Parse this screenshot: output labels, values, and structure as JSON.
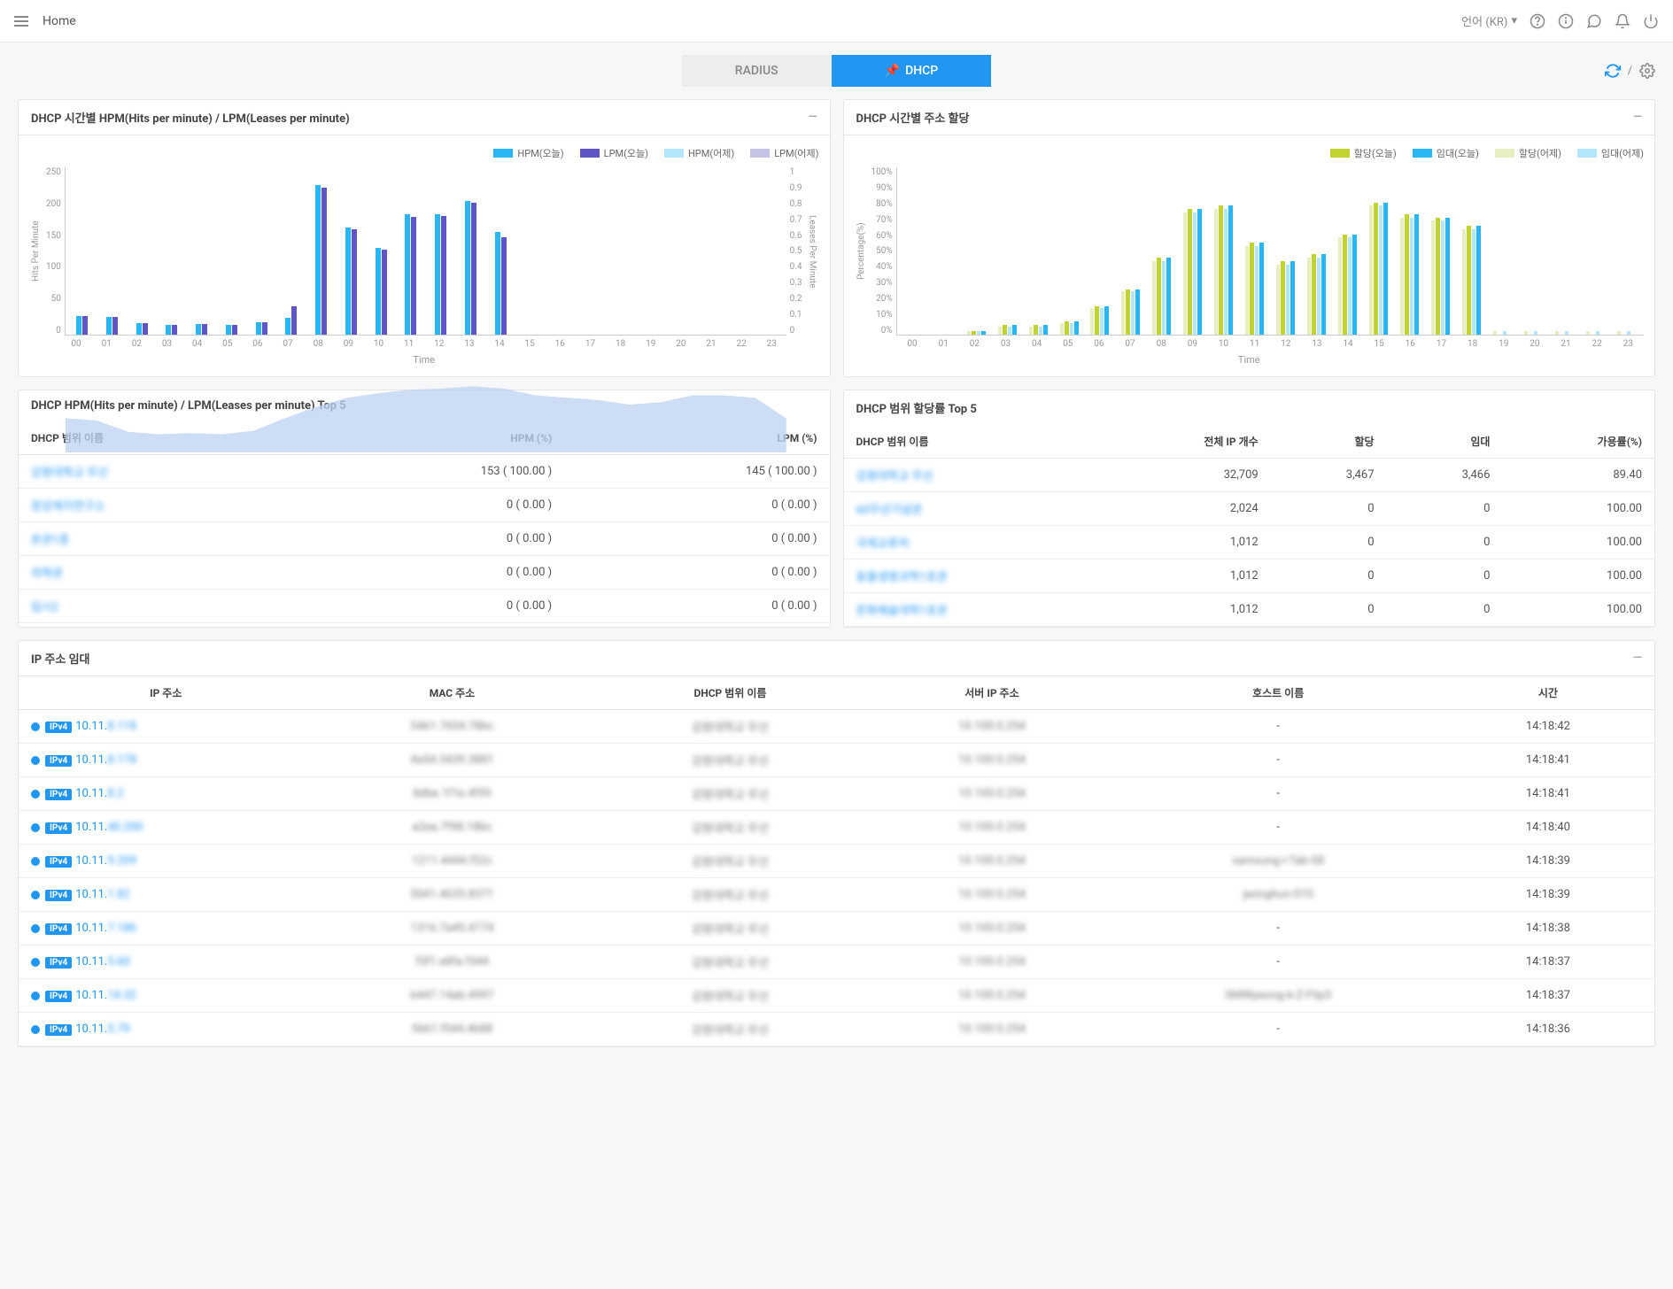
{
  "topbar": {
    "home": "Home",
    "language": "언어 (KR)"
  },
  "tabs": {
    "radius": "RADIUS",
    "dhcp": "DHCP"
  },
  "chart1": {
    "title": "DHCP 시간별 HPM(Hits per minute) / LPM(Leases per minute)",
    "legend": {
      "hpm_today": "HPM(오늘)",
      "lpm_today": "LPM(오늘)",
      "hpm_yest": "HPM(어제)",
      "lpm_yest": "LPM(어제)"
    },
    "colors": {
      "hpm_today": "#29b6f6",
      "lpm_today": "#5e55c9",
      "hpm_yest": "#b3e5fc",
      "lpm_yest": "#c5c2e8"
    },
    "y_left_label": "Hits Per Minute",
    "y_right_label": "Leases Per Minute",
    "x_label": "Time",
    "y_left_max": 250,
    "y_left_ticks": [
      "250",
      "200",
      "150",
      "100",
      "50",
      "0"
    ],
    "y_right_ticks": [
      "1",
      "0.9",
      "0.8",
      "0.7",
      "0.6",
      "0.5",
      "0.4",
      "0.3",
      "0.2",
      "0.1",
      "0"
    ],
    "hours": [
      "00",
      "01",
      "02",
      "03",
      "04",
      "05",
      "06",
      "07",
      "08",
      "09",
      "10",
      "11",
      "12",
      "13",
      "14",
      "15",
      "16",
      "17",
      "18",
      "19",
      "20",
      "21",
      "22",
      "23"
    ],
    "hpm_today": [
      28,
      27,
      17,
      15,
      16,
      15,
      18,
      25,
      223,
      160,
      130,
      180,
      180,
      200,
      153,
      0,
      0,
      0,
      0,
      0,
      0,
      0,
      0,
      0
    ],
    "lpm_today": [
      28,
      27,
      17,
      15,
      16,
      15,
      18,
      42,
      220,
      157,
      127,
      176,
      177,
      197,
      145,
      0,
      0,
      0,
      0,
      0,
      0,
      0,
      0,
      0
    ],
    "hpm_area": [
      30,
      28,
      18,
      16,
      17,
      16,
      19,
      30,
      40,
      48,
      52,
      55,
      56,
      58,
      56,
      50,
      48,
      46,
      42,
      44,
      50,
      50,
      48,
      30
    ],
    "lpm_area": [
      30,
      28,
      18,
      16,
      17,
      16,
      19,
      30,
      40,
      48,
      52,
      55,
      56,
      58,
      56,
      50,
      48,
      46,
      42,
      44,
      50,
      50,
      48,
      30
    ]
  },
  "chart2": {
    "title": "DHCP 시간별 주소 할당",
    "legend": {
      "alloc_today": "할당(오늘)",
      "lease_today": "임대(오늘)",
      "alloc_yest": "할당(어제)",
      "lease_yest": "임대(어제)"
    },
    "colors": {
      "alloc_today": "#c0d330",
      "lease_today": "#29b6f6",
      "alloc_yest": "#e8eec0",
      "lease_yest": "#b3e5fc"
    },
    "y_label": "Percentage(%)",
    "x_label": "Time",
    "y_max": 100,
    "y_ticks": [
      "100%",
      "90%",
      "80%",
      "70%",
      "60%",
      "50%",
      "40%",
      "30%",
      "20%",
      "10%",
      "0%"
    ],
    "hours": [
      "00",
      "01",
      "02",
      "03",
      "04",
      "05",
      "06",
      "07",
      "08",
      "09",
      "10",
      "11",
      "12",
      "13",
      "14",
      "15",
      "16",
      "17",
      "18",
      "19",
      "20",
      "21",
      "22",
      "23"
    ],
    "alloc_today": [
      0,
      0,
      2,
      6,
      6,
      8,
      17,
      27,
      46,
      75,
      77,
      55,
      44,
      48,
      60,
      79,
      72,
      70,
      65,
      0,
      0,
      0,
      0,
      0
    ],
    "lease_today": [
      0,
      0,
      2,
      6,
      6,
      8,
      17,
      27,
      46,
      75,
      77,
      55,
      44,
      48,
      60,
      79,
      72,
      70,
      65,
      0,
      0,
      0,
      0,
      0
    ],
    "alloc_yest": [
      0,
      0,
      2,
      5,
      5,
      7,
      16,
      26,
      44,
      73,
      75,
      53,
      42,
      46,
      58,
      77,
      70,
      68,
      63,
      2,
      2,
      2,
      2,
      2
    ],
    "lease_yest": [
      0,
      0,
      2,
      5,
      5,
      7,
      16,
      26,
      44,
      73,
      75,
      53,
      42,
      46,
      58,
      77,
      70,
      68,
      63,
      2,
      2,
      2,
      2,
      2
    ]
  },
  "top5_left": {
    "title": "DHCP HPM(Hits per minute) / LPM(Leases per minute) Top 5",
    "cols": {
      "name": "DHCP 범위 이름",
      "hpm": "HPM (%)",
      "lpm": "LPM (%)"
    },
    "rows": [
      {
        "name": "강원대학교 무선",
        "hpm": "153 ( 100.00 )",
        "lpm": "145 ( 100.00 )"
      },
      {
        "name": "창강제지연구소",
        "hpm": "0 ( 0.00 )",
        "lpm": "0 ( 0.00 )"
      },
      {
        "name": "본관1층",
        "hpm": "0 ( 0.00 )",
        "lpm": "0 ( 0.00 )"
      },
      {
        "name": "의학관",
        "hpm": "0 ( 0.00 )",
        "lpm": "0 ( 0.00 )"
      },
      {
        "name": "임시2",
        "hpm": "0 ( 0.00 )",
        "lpm": "0 ( 0.00 )"
      }
    ]
  },
  "top5_right": {
    "title": "DHCP 범위 할당률 Top 5",
    "cols": {
      "name": "DHCP 범위 이름",
      "total": "전체 IP 개수",
      "alloc": "할당",
      "lease": "임대",
      "avail": "가용률(%)"
    },
    "rows": [
      {
        "name": "강원대학교 무선",
        "total": "32,709",
        "alloc": "3,467",
        "lease": "3,466",
        "avail": "89.40"
      },
      {
        "name": "60주년기념관",
        "total": "2,024",
        "alloc": "0",
        "lease": "0",
        "avail": "100.00"
      },
      {
        "name": "국제교류처",
        "total": "1,012",
        "alloc": "0",
        "lease": "0",
        "avail": "100.00"
      },
      {
        "name": "동물생명과학1호관",
        "total": "1,012",
        "alloc": "0",
        "lease": "0",
        "avail": "100.00"
      },
      {
        "name": "문화예술대학1호관",
        "total": "1,012",
        "alloc": "0",
        "lease": "0",
        "avail": "100.00"
      }
    ]
  },
  "ip_leases": {
    "title": "IP 주소 임대",
    "cols": {
      "ip": "IP 주소",
      "mac": "MAC 주소",
      "range": "DHCP 범위 이름",
      "server": "서버 IP 주소",
      "host": "호스트 이름",
      "time": "시간"
    },
    "rows": [
      {
        "ip_pre": "10.11.",
        "ip_rest": "8.118",
        "mac": "5461.7654.78bc",
        "range": "강원대학교 무선",
        "server": "10.100.0.254",
        "host": "-",
        "time": "14:18:42"
      },
      {
        "ip_pre": "10.11.",
        "ip_rest": "8.178",
        "mac": "4a54.3439.3881",
        "range": "강원대학교 무선",
        "server": "10.100.0.254",
        "host": "-",
        "time": "14:18:41"
      },
      {
        "ip_pre": "10.11.",
        "ip_rest": "8.2",
        "mac": "8dbe.1f1e.4f59",
        "range": "강원대학교 무선",
        "server": "10.100.0.254",
        "host": "-",
        "time": "14:18:41"
      },
      {
        "ip_pre": "10.11.",
        "ip_rest": "40.200",
        "mac": "a2ea.7f98.18bc",
        "range": "강원대학교 무선",
        "server": "10.100.0.254",
        "host": "-",
        "time": "14:18:40"
      },
      {
        "ip_pre": "10.11.",
        "ip_rest": "9.209",
        "mac": "1211.4444.f52c",
        "range": "강원대학교 무선",
        "server": "10.100.0.254",
        "host": "samsung-i-Tab-S8",
        "time": "14:18:39"
      },
      {
        "ip_pre": "10.11.",
        "ip_rest": "1.82",
        "mac": "5041.4635.8371",
        "range": "강원대학교 무선",
        "server": "10.100.0.254",
        "host": "jeonghun-S10",
        "time": "14:18:39"
      },
      {
        "ip_pre": "10.11.",
        "ip_rest": "7.186",
        "mac": "1316.7a45.4774",
        "range": "강원대학교 무선",
        "server": "10.100.0.254",
        "host": "-",
        "time": "14:18:38"
      },
      {
        "ip_pre": "10.11.",
        "ip_rest": "5.60",
        "mac": "f3f1.e8fa.f344",
        "range": "강원대학교 무선",
        "server": "10.100.0.254",
        "host": "-",
        "time": "14:18:37"
      },
      {
        "ip_pre": "10.11.",
        "ip_rest": "14.32",
        "mac": "b447.14ab.4997",
        "range": "강원대학교 무선",
        "server": "10.100.0.254",
        "host": "SMWpeong-k-Z-Flip3",
        "time": "14:18:37"
      },
      {
        "ip_pre": "10.11.",
        "ip_rest": "5.79",
        "mac": "5661.f544.4688",
        "range": "강원대학교 무선",
        "server": "10.100.0.254",
        "host": "-",
        "time": "14:18:36"
      }
    ]
  }
}
